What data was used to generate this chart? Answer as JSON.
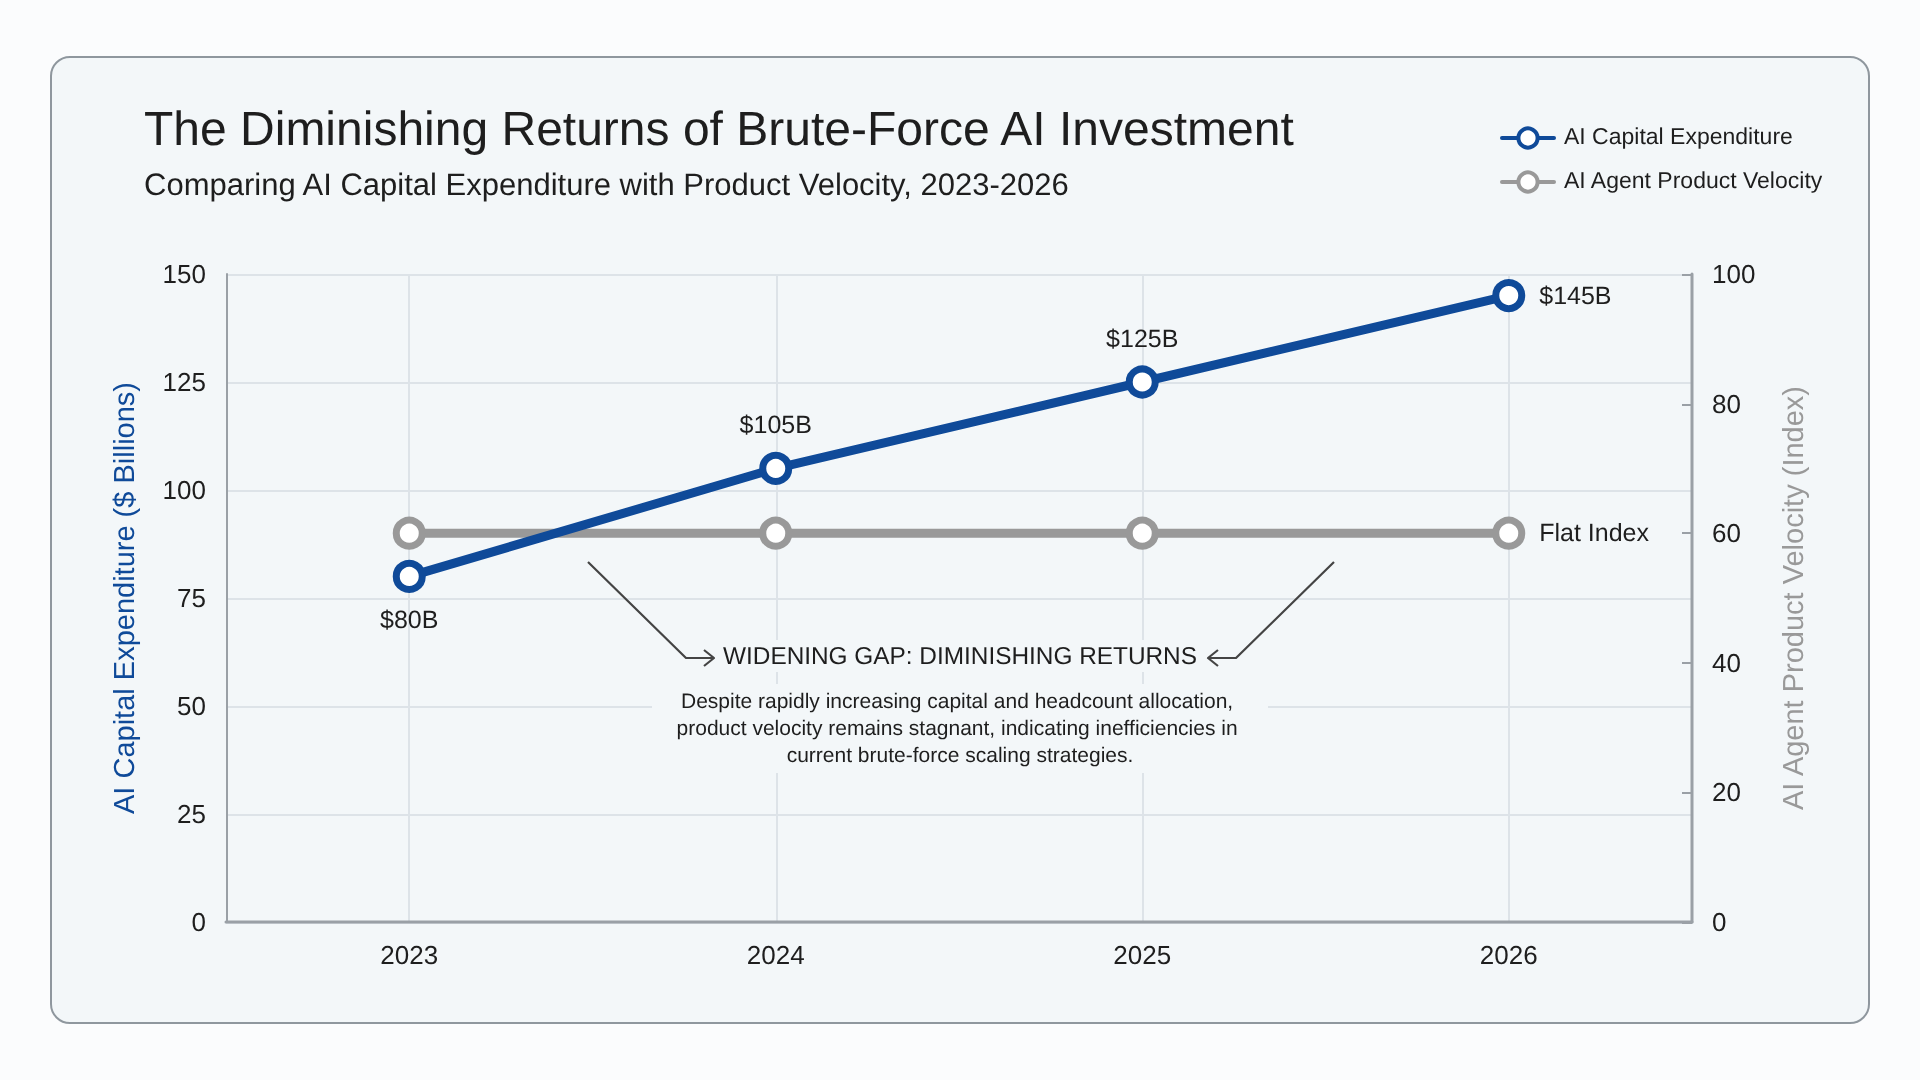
{
  "chart_data": {
    "type": "line",
    "title": "The Diminishing Returns of Brute-Force AI Investment",
    "subtitle": "Comparing AI Capital Expenditure with Product Velocity, 2023-2026",
    "ylabel": "AI Capital Expenditure ($ Billions)",
    "y2label": "AI Agent Product Velocity (Index)",
    "categories": [
      "2023",
      "2024",
      "2025",
      "2026"
    ],
    "series": [
      {
        "name": "AI Capital Expenditure",
        "color": "#0f4a99",
        "values": [
          80,
          105,
          125,
          145
        ],
        "value_labels": [
          "$80B",
          "$105B",
          "$125B",
          "$145B"
        ]
      },
      {
        "name": "AI Agent Product Velocity",
        "color": "#999999",
        "values": [
          60,
          60,
          60,
          60
        ],
        "axis": "y2",
        "value_labels": [
          null,
          null,
          null,
          "Flat Index"
        ]
      }
    ],
    "ylim": [
      0,
      150
    ],
    "yticks": [
      0,
      25,
      50,
      75,
      100,
      125,
      150
    ],
    "y2lim": [
      0,
      100
    ],
    "y2ticks": [
      0,
      20,
      40,
      60,
      80,
      100
    ],
    "annotations": [
      "WIDENING GAP: DIMINISHING RETURNS",
      "Despite rapidly increasing capital and headcount allocation, product velocity remains stagnant, indicating inefficiencies in current brute-force scaling strategies."
    ],
    "grid": true,
    "legend": "top right",
    "marker": "circle"
  }
}
